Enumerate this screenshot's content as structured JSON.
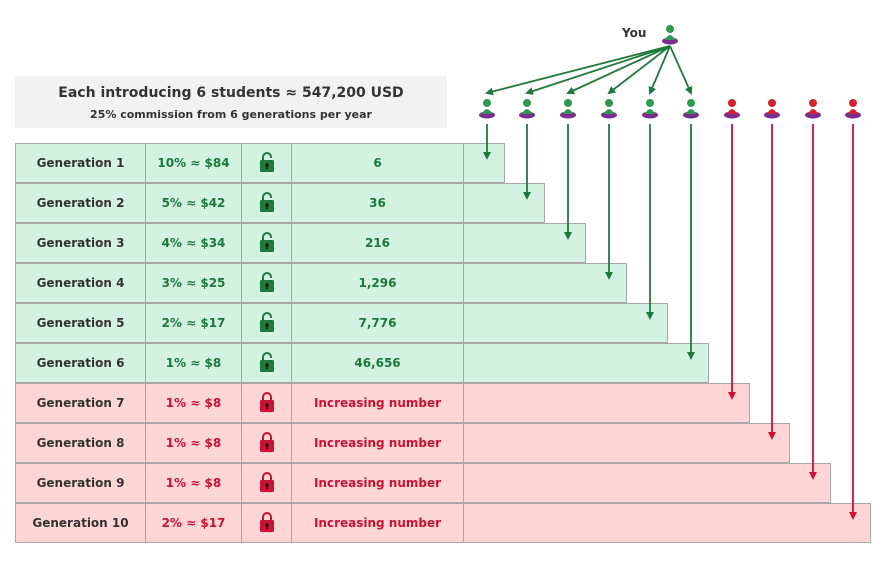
{
  "header": {
    "title": "Each introducing 6 students ≈ 547,200 USD",
    "subtitle": "25% commission from 6 generations per year"
  },
  "you_label": "You",
  "colors": {
    "green": "#1f7a3c",
    "red": "#cc1133",
    "green_bg": "#d4f2e2",
    "red_bg": "#ffd6d6",
    "person_body": "#7b2d8e"
  },
  "rows": [
    {
      "generation": "Generation 1",
      "commission": "10% ≈ $84",
      "locked": false,
      "count": "6"
    },
    {
      "generation": "Generation 2",
      "commission": "5% ≈ $42",
      "locked": false,
      "count": "36"
    },
    {
      "generation": "Generation 3",
      "commission": "4% ≈ $34",
      "locked": false,
      "count": "216"
    },
    {
      "generation": "Generation 4",
      "commission": "3% ≈ $25",
      "locked": false,
      "count": "1,296"
    },
    {
      "generation": "Generation 5",
      "commission": "2% ≈ $17",
      "locked": false,
      "count": "7,776"
    },
    {
      "generation": "Generation 6",
      "commission": "1% ≈ $8",
      "locked": false,
      "count": "46,656"
    },
    {
      "generation": "Generation 7",
      "commission": "1% ≈ $8",
      "locked": true,
      "count": "Increasing number"
    },
    {
      "generation": "Generation 8",
      "commission": "1% ≈ $8",
      "locked": true,
      "count": "Increasing number"
    },
    {
      "generation": "Generation 9",
      "commission": "1% ≈ $8",
      "locked": true,
      "count": "Increasing number"
    },
    {
      "generation": "Generation 10",
      "commission": "2% ≈ $17",
      "locked": true,
      "count": "Increasing number"
    }
  ]
}
